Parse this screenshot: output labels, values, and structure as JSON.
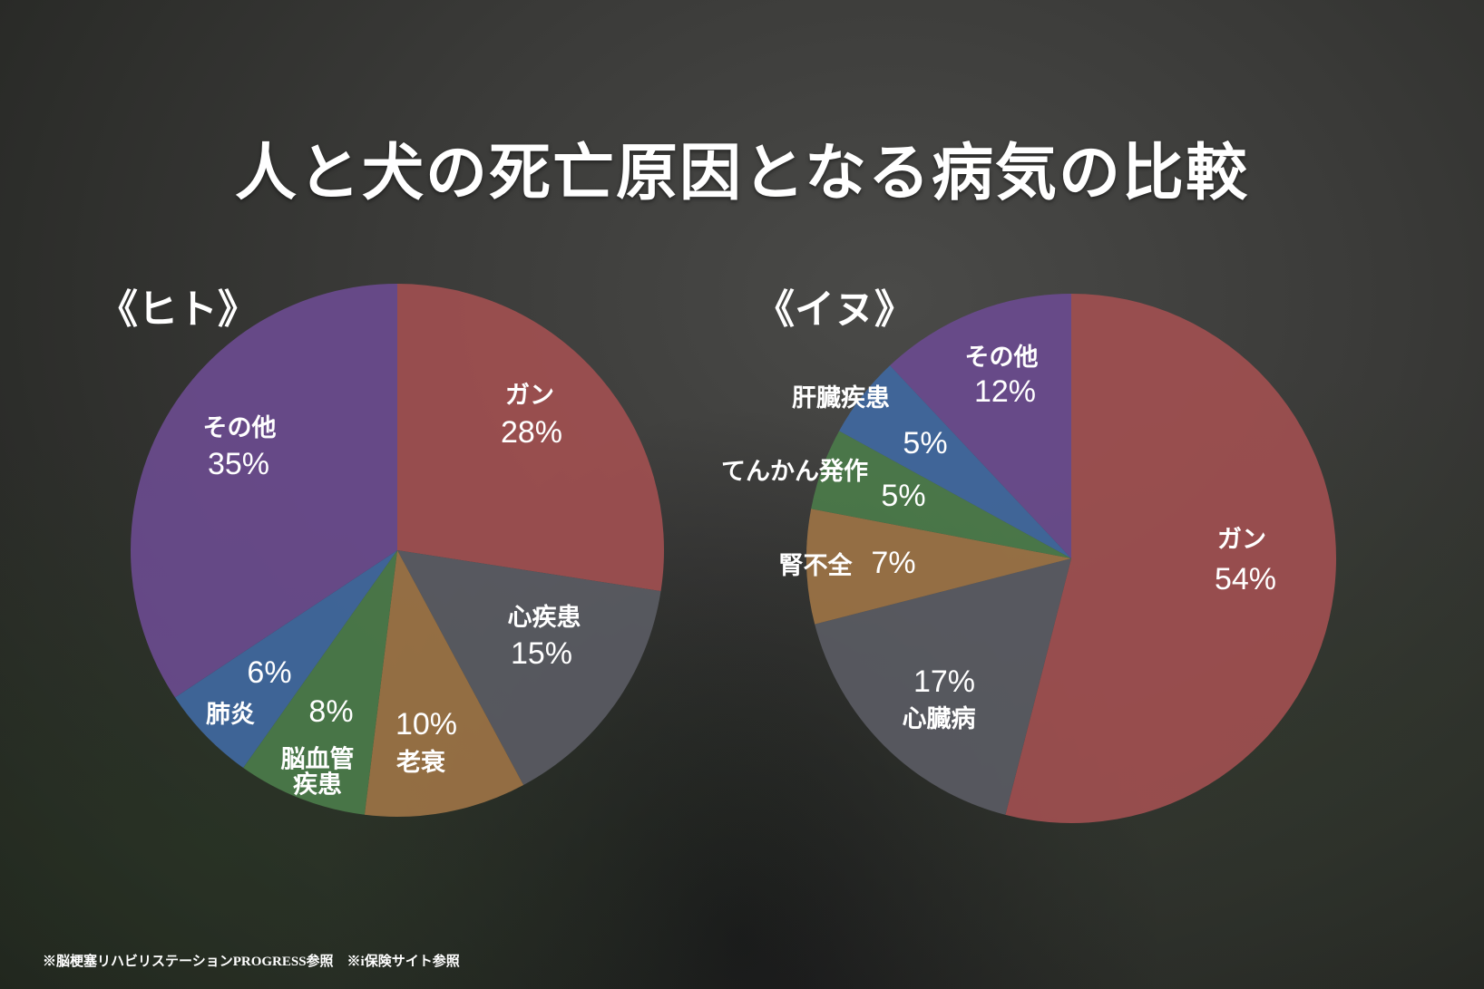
{
  "title": "人と犬の死亡原因となる病気の比較",
  "footnote": "※脳梗塞リハビリステーションPROGRESS参照　※i保険サイト参照",
  "chart_data": [
    {
      "type": "pie",
      "title": "《ヒト》",
      "start": "top",
      "direction": "clockwise",
      "categories": [
        "ガン",
        "心疾患",
        "老衰",
        "脳血管疾患",
        "肺炎",
        "その他"
      ],
      "values": [
        28,
        15,
        10,
        8,
        6,
        35
      ],
      "value_labels": [
        "28%",
        "15%",
        "10%",
        "8%",
        "6%",
        "35%"
      ],
      "colors": [
        "#a04f50",
        "#5a5b63",
        "#9c7345",
        "#4b7b4a",
        "#4068a0",
        "#6a4b8e"
      ]
    },
    {
      "type": "pie",
      "title": "《イヌ》",
      "start": "top",
      "direction": "clockwise",
      "categories": [
        "ガン",
        "心臓病",
        "腎不全",
        "てんかん発作",
        "肝臓疾患",
        "その他"
      ],
      "values": [
        54,
        17,
        7,
        5,
        5,
        12
      ],
      "value_labels": [
        "54%",
        "17%",
        "7%",
        "5%",
        "5%",
        "12%"
      ],
      "colors": [
        "#a04f50",
        "#5a5b63",
        "#9c7345",
        "#4b7b4a",
        "#4068a0",
        "#6a4b8e"
      ]
    }
  ]
}
